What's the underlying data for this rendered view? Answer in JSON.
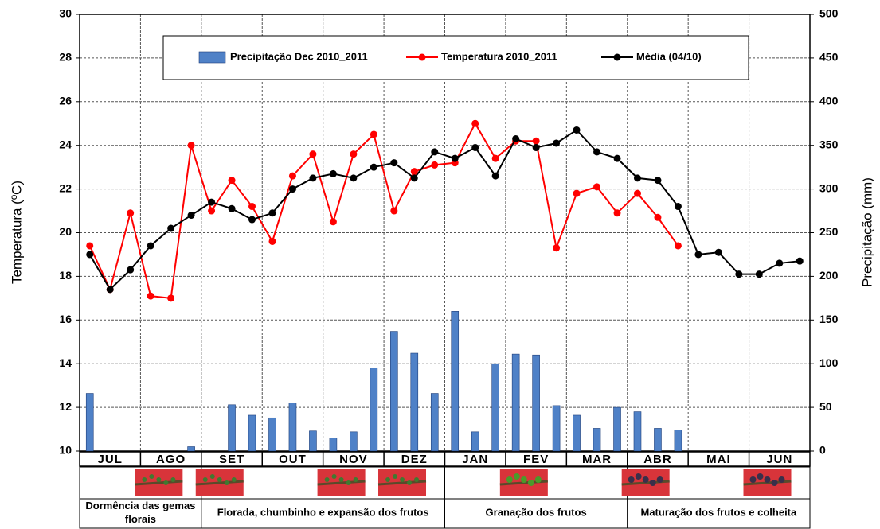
{
  "chart_data": {
    "type": "combo",
    "y_label": "Temperatura (ºC)",
    "y2_label": "Precipitação (mm)",
    "months": [
      "JUL",
      "AGO",
      "SET",
      "OUT",
      "NOV",
      "DEZ",
      "JAN",
      "FEV",
      "MAR",
      "ABR",
      "MAI",
      "JUN"
    ],
    "ylim": [
      10,
      30
    ],
    "yticks": [
      10,
      12,
      14,
      16,
      18,
      20,
      22,
      24,
      26,
      28,
      30
    ],
    "y2lim": [
      0,
      500
    ],
    "y2ticks": [
      0,
      50,
      100,
      150,
      200,
      250,
      300,
      350,
      400,
      450,
      500
    ],
    "grid": true,
    "series": [
      {
        "name": "Precipitação Dec 2010_2011",
        "type": "bar",
        "axis": "y2",
        "color": "#4f81c7",
        "values": [
          66,
          0,
          0,
          0,
          0,
          5,
          0,
          53,
          41,
          38,
          55,
          23,
          15,
          22,
          95,
          137,
          112,
          66,
          160,
          22,
          100,
          111,
          110,
          52,
          41,
          26,
          50,
          45,
          26,
          24,
          0,
          0,
          0,
          0,
          0,
          0
        ]
      },
      {
        "name": "Temperatura 2010_2011",
        "type": "line",
        "color": "#ff0000",
        "values": [
          19.4,
          17.4,
          20.9,
          17.1,
          17.0,
          24.0,
          21.0,
          22.4,
          21.2,
          19.6,
          22.6,
          23.6,
          20.5,
          23.6,
          24.5,
          21.0,
          22.8,
          23.1,
          23.2,
          25.0,
          23.4,
          24.2,
          24.2,
          19.3,
          21.8,
          22.1,
          20.9,
          21.8,
          20.7,
          19.4,
          null,
          null,
          null,
          null,
          null,
          null
        ]
      },
      {
        "name": "Média (04/10)",
        "type": "line",
        "color": "#000000",
        "values": [
          19.0,
          17.4,
          18.3,
          19.4,
          20.2,
          20.8,
          21.4,
          21.1,
          20.6,
          20.9,
          22.0,
          22.5,
          22.7,
          22.5,
          23.0,
          23.2,
          22.5,
          23.7,
          23.4,
          23.9,
          22.6,
          24.3,
          23.9,
          24.1,
          24.7,
          23.7,
          23.4,
          22.5,
          22.4,
          21.2,
          19.0,
          19.1,
          18.1,
          18.1,
          18.6,
          18.7
        ]
      }
    ],
    "phases": [
      "Dormência das gemas florais",
      "Florada, chumbinho e expansão dos frutos",
      "Granação dos frutos",
      "Maturação dos frutos e colheita"
    ]
  }
}
